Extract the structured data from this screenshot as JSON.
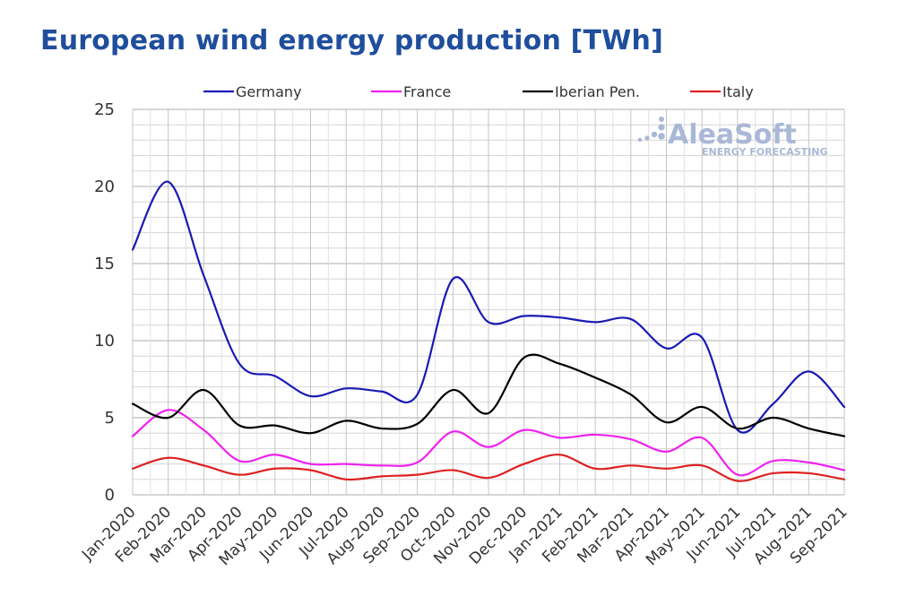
{
  "chart_data": {
    "type": "line",
    "title": "European wind energy production [TWh]",
    "xlabel": "",
    "ylabel": "",
    "ylim": [
      0,
      25
    ],
    "yticks": [
      0,
      5,
      10,
      15,
      20,
      25
    ],
    "grid": true,
    "legend_position": "top",
    "categories": [
      "Jan-2020",
      "Feb-2020",
      "Mar-2020",
      "Apr-2020",
      "May-2020",
      "Jun-2020",
      "Jul-2020",
      "Aug-2020",
      "Sep-2020",
      "Oct-2020",
      "Nov-2020",
      "Dec-2020",
      "Jan-2021",
      "Feb-2021",
      "Mar-2021",
      "Apr-2021",
      "May-2021",
      "Jun-2021",
      "Jul-2021",
      "Aug-2021",
      "Sep-2021"
    ],
    "series": [
      {
        "name": "Germany",
        "color": "#1a1ab4",
        "values": [
          15.9,
          20.3,
          14.2,
          8.5,
          7.7,
          6.4,
          6.9,
          6.7,
          6.5,
          14.0,
          11.2,
          11.6,
          11.5,
          11.2,
          11.4,
          9.5,
          10.2,
          4.2,
          5.9,
          8.0,
          5.7
        ]
      },
      {
        "name": "France",
        "color": "#ee22ee",
        "values": [
          3.8,
          5.5,
          4.2,
          2.2,
          2.6,
          2.0,
          2.0,
          1.9,
          2.1,
          4.1,
          3.1,
          4.2,
          3.7,
          3.9,
          3.6,
          2.8,
          3.7,
          1.3,
          2.2,
          2.1,
          1.6
        ]
      },
      {
        "name": "Iberian Pen.",
        "color": "#000000",
        "values": [
          5.9,
          5.0,
          6.8,
          4.5,
          4.5,
          4.0,
          4.8,
          4.3,
          4.6,
          6.8,
          5.3,
          8.9,
          8.5,
          7.6,
          6.5,
          4.7,
          5.7,
          4.3,
          5.0,
          4.3,
          3.8
        ]
      },
      {
        "name": "Italy",
        "color": "#dd2222",
        "values": [
          1.7,
          2.4,
          1.9,
          1.3,
          1.7,
          1.6,
          1.0,
          1.2,
          1.3,
          1.6,
          1.1,
          2.0,
          2.6,
          1.7,
          1.9,
          1.7,
          1.9,
          0.9,
          1.4,
          1.4,
          1.0
        ]
      }
    ]
  },
  "watermark": {
    "brand": "AleaSoft",
    "tagline": "ENERGY FORECASTING"
  }
}
